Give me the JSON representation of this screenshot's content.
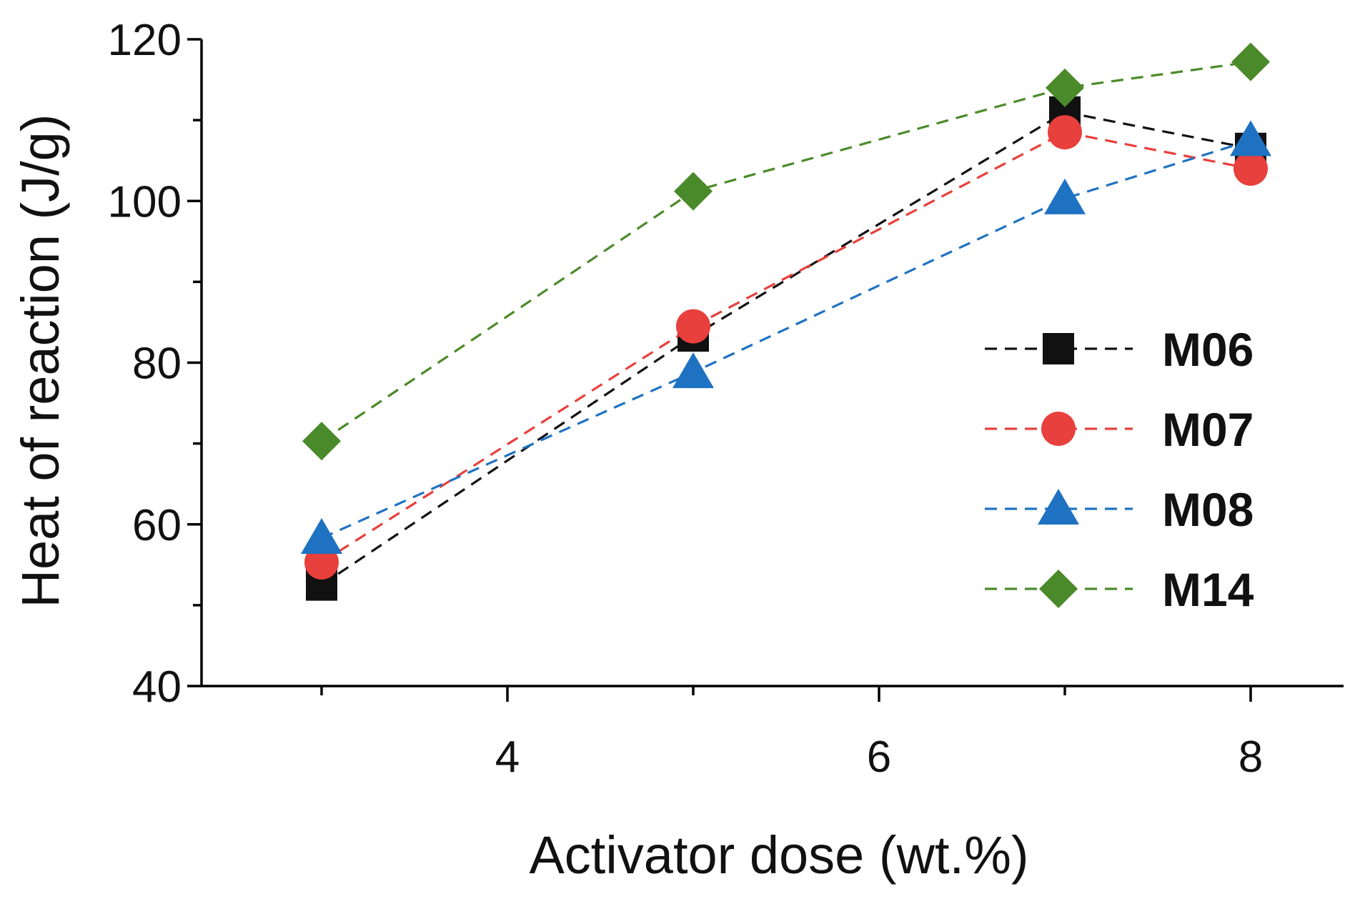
{
  "chart_data": {
    "type": "line",
    "title": "",
    "xlabel": "Activator dose (wt.%)",
    "ylabel": "Heat of reaction (J/g)",
    "xlim": [
      2.5,
      8.5
    ],
    "ylim": [
      40,
      120
    ],
    "xticks": [
      4,
      6,
      8
    ],
    "xminor_ticks": [
      3,
      5,
      7
    ],
    "yticks": [
      40,
      60,
      80,
      100,
      120
    ],
    "yminor_ticks": [
      50,
      70,
      90,
      110
    ],
    "x": [
      3,
      5,
      7,
      8
    ],
    "series": [
      {
        "name": "M06",
        "values": [
          52.5,
          83.3,
          111.0,
          106.5
        ],
        "color": "#111111",
        "marker": "square"
      },
      {
        "name": "M07",
        "values": [
          55.3,
          84.5,
          108.5,
          104.0
        ],
        "color": "#e8403c",
        "marker": "circle"
      },
      {
        "name": "M08",
        "values": [
          58.3,
          78.8,
          100.3,
          107.5
        ],
        "color": "#1f72c2",
        "marker": "triangle"
      },
      {
        "name": "M14",
        "values": [
          70.3,
          101.2,
          114.0,
          117.2
        ],
        "color": "#4b8a2a",
        "marker": "diamond"
      }
    ],
    "legend_position": "center-right",
    "grid": false
  }
}
